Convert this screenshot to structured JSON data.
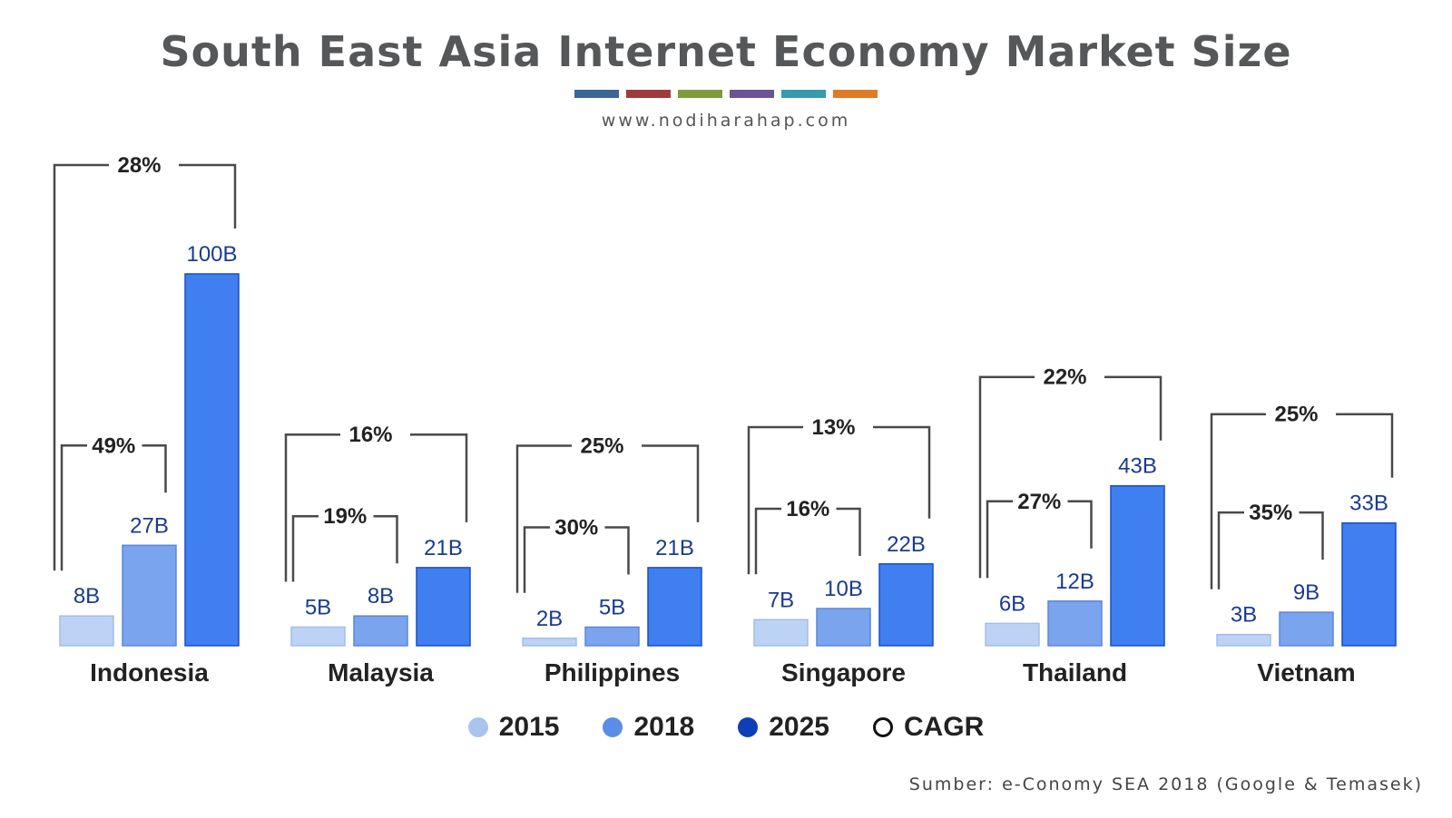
{
  "header": {
    "title": "South East Asia Internet Economy Market Size",
    "website": "www.nodiharahap.com",
    "stripe_colors": [
      "#3d6597",
      "#a0393b",
      "#7d9b3a",
      "#6a5494",
      "#3a99b0",
      "#e07b25"
    ]
  },
  "source": "Sumber: e-Conomy SEA 2018 (Google & Temasek)",
  "chart_data": {
    "type": "bar",
    "title": "South East Asia Internet Economy Market Size",
    "categories": [
      "Indonesia",
      "Malaysia",
      "Philippines",
      "Singapore",
      "Thailand",
      "Vietnam"
    ],
    "series": [
      {
        "name": "2015",
        "values": [
          8,
          5,
          2,
          7,
          6,
          3
        ],
        "labels": [
          "8B",
          "5B",
          "2B",
          "7B",
          "6B",
          "3B"
        ],
        "color": "#bdd3f5"
      },
      {
        "name": "2018",
        "values": [
          27,
          8,
          5,
          10,
          12,
          9
        ],
        "labels": [
          "27B",
          "8B",
          "5B",
          "10B",
          "12B",
          "9B"
        ],
        "color": "#7aa4ee"
      },
      {
        "name": "2025",
        "values": [
          100,
          21,
          21,
          22,
          43,
          33
        ],
        "labels": [
          "100B",
          "21B",
          "21B",
          "22B",
          "43B",
          "33B"
        ],
        "color": "#3f7ff0"
      }
    ],
    "cagr_2015_2018": [
      "49%",
      "19%",
      "30%",
      "16%",
      "27%",
      "35%"
    ],
    "cagr_2015_2025": [
      "28%",
      "16%",
      "25%",
      "13%",
      "22%",
      "25%"
    ],
    "unit": "B",
    "ylim": [
      0,
      100
    ],
    "grid": false,
    "legend": {
      "position": "bottom",
      "entries": [
        {
          "label": "2015",
          "color": "#a9c4ef"
        },
        {
          "label": "2018",
          "color": "#5b8de8"
        },
        {
          "label": "2025",
          "color": "#0f3fb8"
        },
        {
          "label": "CAGR",
          "color": "#111111"
        }
      ]
    }
  }
}
